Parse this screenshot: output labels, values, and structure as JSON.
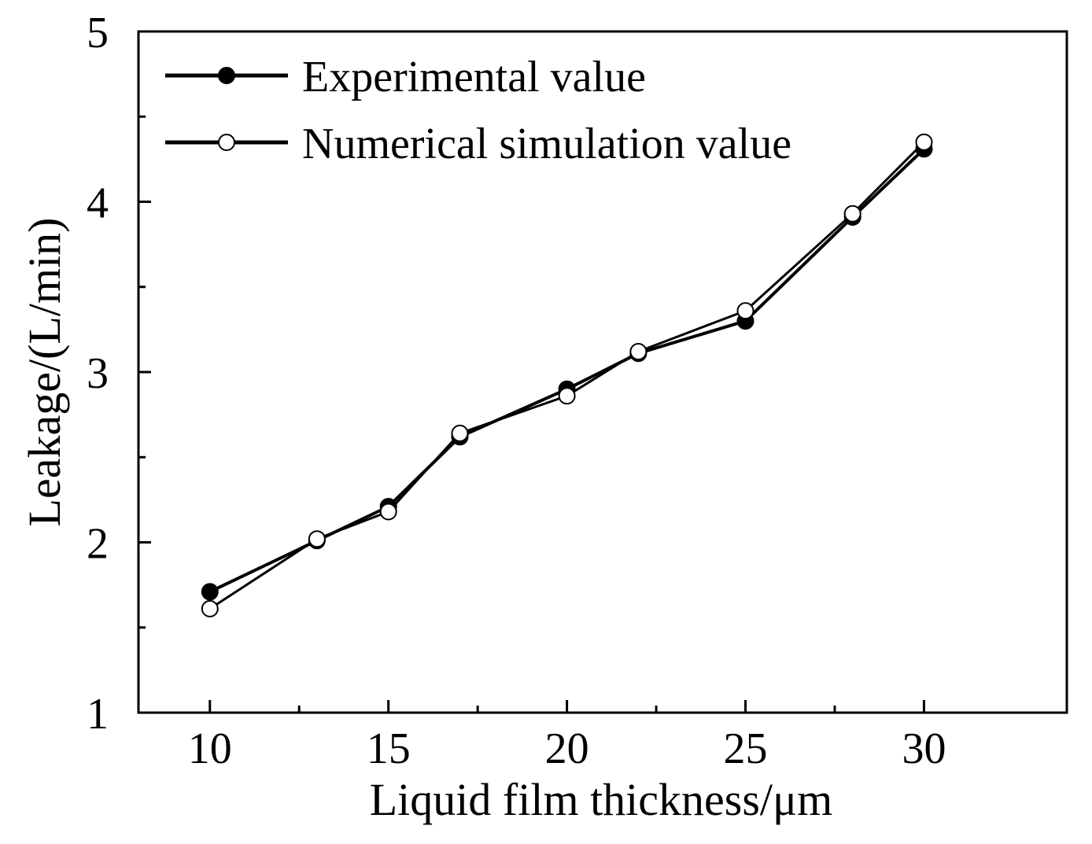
{
  "chart_data": {
    "type": "line",
    "xlabel": "Liquid film thickness/μm",
    "ylabel": "Leakage/(L/min)",
    "xlim": [
      8,
      34
    ],
    "ylim": [
      1,
      5
    ],
    "x_ticks": [
      10,
      15,
      20,
      25,
      30
    ],
    "x_tick_labels": [
      "10",
      "15",
      "20",
      "25",
      "30"
    ],
    "x_minor_ticks": [
      12.5,
      17.5,
      22.5,
      27.5
    ],
    "y_ticks": [
      1,
      2,
      3,
      4,
      5
    ],
    "y_tick_labels": [
      "1",
      "2",
      "3",
      "4",
      "5"
    ],
    "y_minor_ticks": [
      1.5,
      2.5,
      3.5,
      4.5
    ],
    "grid": false,
    "legend_position": "top-left",
    "series": [
      {
        "name": "Experimental value",
        "marker": "filled-circle",
        "x": [
          10,
          13,
          15,
          17,
          20,
          22,
          25,
          28,
          30
        ],
        "values": [
          1.71,
          2.01,
          2.21,
          2.62,
          2.9,
          3.11,
          3.3,
          3.91,
          4.31
        ]
      },
      {
        "name": "Numerical simulation value",
        "marker": "open-circle",
        "x": [
          10,
          13,
          15,
          17,
          20,
          22,
          25,
          28,
          30
        ],
        "values": [
          1.61,
          2.02,
          2.18,
          2.64,
          2.86,
          3.12,
          3.36,
          3.93,
          4.35
        ]
      }
    ],
    "colors": {
      "line": "#000000",
      "filled_marker": "#000000",
      "open_marker_fill": "#ffffff"
    }
  }
}
